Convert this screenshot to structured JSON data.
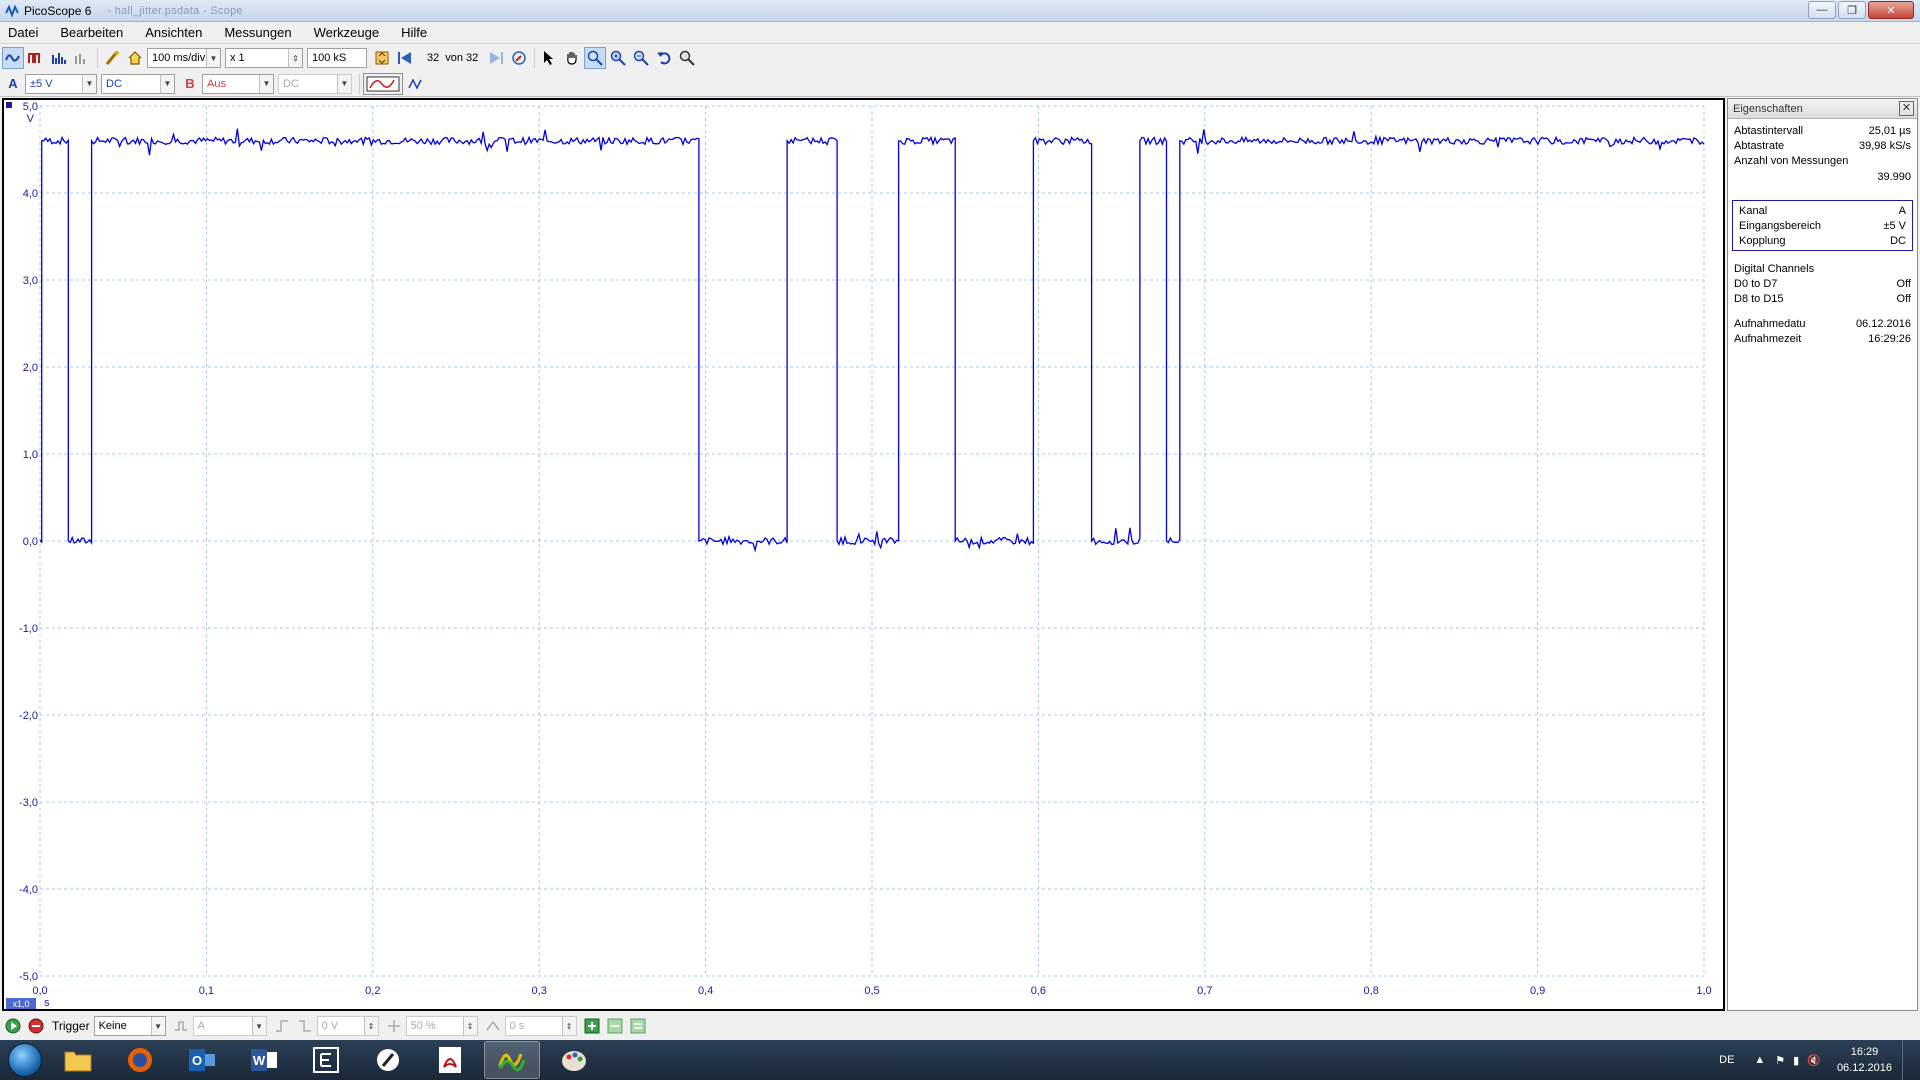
{
  "window": {
    "title": "PicoScope 6",
    "subtitle": "- hall_jitter.psdata - Scope"
  },
  "menu": [
    "Datei",
    "Bearbeiten",
    "Ansichten",
    "Messungen",
    "Werkzeuge",
    "Hilfe"
  ],
  "toolbar": {
    "timebase": "100 ms/div",
    "zoom": "x 1",
    "samples": "100 kS",
    "buffer_current": "32",
    "buffer_of": "von 32"
  },
  "channel_a": {
    "label": "A",
    "range": "±5 V",
    "coupling": "DC"
  },
  "channel_b": {
    "label": "B",
    "range": "Aus",
    "coupling": "DC"
  },
  "scope": {
    "y_unit": "V",
    "x_unit": "s",
    "zoom_badge": "x1,0",
    "trace_color": "#0000e0",
    "grid_color": "#a8c8e8"
  },
  "chart_data": {
    "type": "line",
    "xlabel": "s",
    "ylabel": "V",
    "xlim": [
      0.0,
      1.0
    ],
    "ylim": [
      -5.0,
      5.0
    ],
    "x_ticks": [
      "0,0",
      "0,1",
      "0,2",
      "0,3",
      "0,4",
      "0,5",
      "0,6",
      "0,7",
      "0,8",
      "0,9",
      "1,0"
    ],
    "y_ticks": [
      "5,0",
      "4,0",
      "3,0",
      "2,0",
      "1,0",
      "0,0",
      "-1,0",
      "-2,0",
      "-3,0",
      "-4,0",
      "-5,0"
    ],
    "grid": true,
    "series": [
      {
        "color": "#0000e0",
        "x": [
          0.0,
          0.001,
          0.001,
          0.017,
          0.017,
          0.031,
          0.031,
          0.396,
          0.396,
          0.449,
          0.449,
          0.479,
          0.479,
          0.516,
          0.516,
          0.55,
          0.55,
          0.597,
          0.597,
          0.632,
          0.632,
          0.661,
          0.661,
          0.677,
          0.677,
          0.685,
          0.685,
          1.0
        ],
        "y": [
          0.0,
          0.0,
          4.6,
          4.6,
          0.0,
          0.0,
          4.6,
          4.6,
          0.0,
          0.0,
          4.6,
          4.6,
          0.0,
          0.0,
          4.6,
          4.6,
          0.0,
          0.0,
          4.6,
          4.6,
          0.0,
          0.0,
          4.6,
          4.6,
          0.0,
          0.0,
          4.6,
          4.6
        ]
      }
    ]
  },
  "properties": {
    "header": "Eigenschaften",
    "rows1": [
      {
        "k": "Abtastintervall",
        "v": "25,01 µs"
      },
      {
        "k": "Abtastrate",
        "v": "39,98 kS/s"
      },
      {
        "k": "Anzahl von Messungen",
        "v": ""
      },
      {
        "k": "",
        "v": "39.990"
      }
    ],
    "rows2": [
      {
        "k": "Kanal",
        "v": "A"
      },
      {
        "k": "Eingangsbereich",
        "v": "±5 V"
      },
      {
        "k": "Kopplung",
        "v": "DC"
      }
    ],
    "rows3": [
      {
        "k": "Digital Channels",
        "v": ""
      },
      {
        "k": "D0 to D7",
        "v": "Off"
      },
      {
        "k": "D8 to D15",
        "v": "Off"
      }
    ],
    "rows4": [
      {
        "k": "Aufnahmedatu",
        "v": "06.12.2016"
      },
      {
        "k": "Aufnahmezeit",
        "v": "16:29:26"
      }
    ]
  },
  "trigger": {
    "label": "Trigger",
    "mode": "Keine",
    "source": "A",
    "level": "0 V",
    "percent": "50 %",
    "delay": "0 s"
  },
  "tray": {
    "lang": "DE",
    "time": "16:29",
    "date": "06.12.2016"
  }
}
